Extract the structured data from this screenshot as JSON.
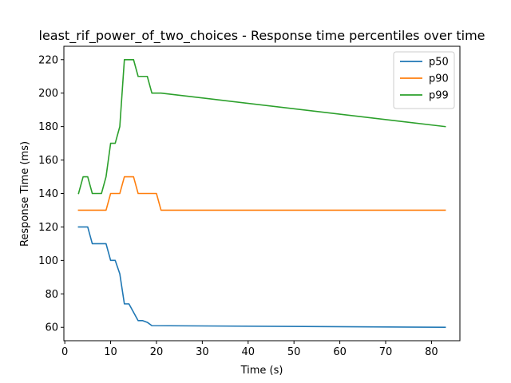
{
  "chart_data": {
    "type": "line",
    "title": "least_rif_power_of_two_choices - Response time percentiles over time",
    "xlabel": "Time (s)",
    "ylabel": "Response Time (ms)",
    "xlim": [
      -0.2,
      86.2
    ],
    "ylim": [
      52,
      228
    ],
    "xticks": [
      0,
      10,
      20,
      30,
      40,
      50,
      60,
      70,
      80
    ],
    "yticks": [
      60,
      80,
      100,
      120,
      140,
      160,
      180,
      200,
      220
    ],
    "grid": false,
    "legend_position": "top-right",
    "series": [
      {
        "name": "p50",
        "color": "#1f77b4",
        "x": [
          3,
          5,
          6,
          7,
          8,
          9,
          10,
          11,
          12,
          13,
          14,
          15,
          16,
          17,
          18,
          19,
          83
        ],
        "y": [
          120,
          120,
          110,
          110,
          110,
          110,
          100,
          100,
          92,
          74,
          74,
          69,
          64,
          64,
          63,
          61,
          60
        ]
      },
      {
        "name": "p90",
        "color": "#ff7f0e",
        "x": [
          3,
          9,
          10,
          11,
          12,
          13,
          14,
          15,
          16,
          17,
          18,
          19,
          20,
          21,
          83
        ],
        "y": [
          130,
          130,
          140,
          140,
          140,
          150,
          150,
          150,
          140,
          140,
          140,
          140,
          140,
          130,
          130
        ]
      },
      {
        "name": "p99",
        "color": "#2ca02c",
        "x": [
          3,
          4,
          5,
          6,
          7,
          8,
          9,
          10,
          11,
          12,
          13,
          14,
          15,
          16,
          17,
          18,
          19,
          20,
          21,
          83
        ],
        "y": [
          140,
          150,
          150,
          140,
          140,
          140,
          150,
          170,
          170,
          180,
          220,
          220,
          220,
          210,
          210,
          210,
          200,
          200,
          200,
          180
        ]
      }
    ]
  }
}
